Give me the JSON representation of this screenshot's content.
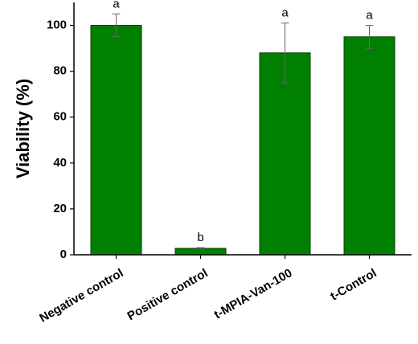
{
  "chart_data": {
    "type": "bar",
    "ylabel": "Viability (%)",
    "categories": [
      "Negative control",
      "Positive control",
      "t-MPIA-Van-100",
      "t-Control"
    ],
    "values": [
      100,
      2.8,
      88,
      95
    ],
    "errors": [
      5,
      0.3,
      13,
      5
    ],
    "letters": [
      "a",
      "b",
      "a",
      "a"
    ],
    "color": "#008000",
    "ylim": [
      0,
      110
    ],
    "yticks": [
      0,
      20,
      40,
      60,
      80,
      100
    ],
    "grid": false
  }
}
